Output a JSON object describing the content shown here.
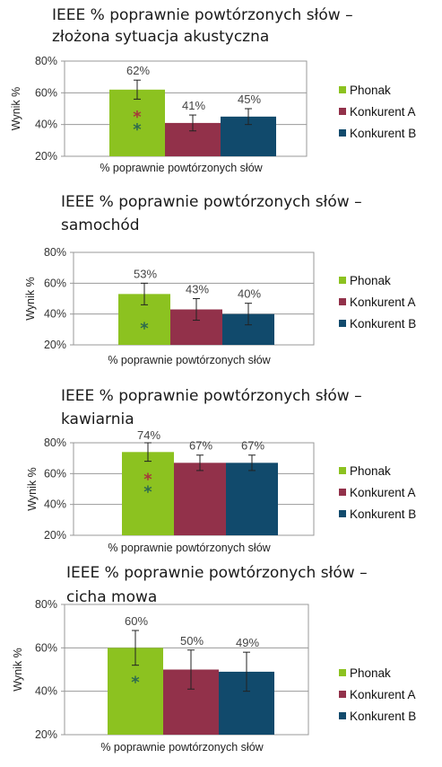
{
  "colors": {
    "Phonak": "#8cc220",
    "Konkurent A": "#92314a",
    "Konkurent B": "#114a6c",
    "star_red": "#a63a3a",
    "star_green": "#2e6b4e",
    "grid": "#999999",
    "error_bar": "#222222"
  },
  "chart_data": [
    {
      "type": "bar",
      "title_lines": [
        "IEEE % poprawnie powtórzonych słów –",
        "złożona sytuacja akustyczna"
      ],
      "xlabel": "% poprawnie powtórzonych słów",
      "ylabel": "Wynik %",
      "ylim": [
        20,
        80
      ],
      "yticks": [
        "20%",
        "40%",
        "60%",
        "80%"
      ],
      "grid": true,
      "legend_position": "right",
      "series": [
        {
          "name": "Phonak",
          "value": 62,
          "label": "62%",
          "error": 6,
          "stars": [
            "red",
            "green"
          ]
        },
        {
          "name": "Konkurent A",
          "value": 41,
          "label": "41%",
          "error": 5,
          "stars": []
        },
        {
          "name": "Konkurent B",
          "value": 45,
          "label": "45%",
          "error": 5,
          "stars": []
        }
      ]
    },
    {
      "type": "bar",
      "title_lines": [
        "IEEE % poprawnie powtórzonych słów –",
        "samochód"
      ],
      "xlabel": "% poprawnie powtórzonych słów",
      "ylabel": "Wynik %",
      "ylim": [
        20,
        80
      ],
      "yticks": [
        "20%",
        "40%",
        "60%",
        "80%"
      ],
      "grid": true,
      "legend_position": "right",
      "series": [
        {
          "name": "Phonak",
          "value": 53,
          "label": "53%",
          "error": 7,
          "stars": [
            "green"
          ]
        },
        {
          "name": "Konkurent A",
          "value": 43,
          "label": "43%",
          "error": 7,
          "stars": []
        },
        {
          "name": "Konkurent B",
          "value": 40,
          "label": "40%",
          "error": 7,
          "stars": []
        }
      ]
    },
    {
      "type": "bar",
      "title_lines": [
        "IEEE % poprawnie powtórzonych słów –",
        "kawiarnia"
      ],
      "xlabel": "% poprawnie powtórzonych słów",
      "ylabel": "Wynik %",
      "ylim": [
        20,
        80
      ],
      "yticks": [
        "20%",
        "40%",
        "60%",
        "80%"
      ],
      "grid": true,
      "legend_position": "right",
      "series": [
        {
          "name": "Phonak",
          "value": 74,
          "label": "74%",
          "error": 6,
          "stars": [
            "red",
            "green"
          ]
        },
        {
          "name": "Konkurent A",
          "value": 67,
          "label": "67%",
          "error": 5,
          "stars": []
        },
        {
          "name": "Konkurent B",
          "value": 67,
          "label": "67%",
          "error": 5,
          "stars": []
        }
      ]
    },
    {
      "type": "bar",
      "title_lines": [
        "IEEE % poprawnie powtórzonych słów –",
        "cicha mowa"
      ],
      "xlabel": "% poprawnie powtórzonych słów",
      "ylabel": "Wynik %",
      "ylim": [
        20,
        80
      ],
      "yticks": [
        "20%",
        "40%",
        "60%",
        "80%"
      ],
      "grid": true,
      "legend_position": "right",
      "series": [
        {
          "name": "Phonak",
          "value": 60,
          "label": "60%",
          "error": 8,
          "stars": [
            "green"
          ]
        },
        {
          "name": "Konkurent A",
          "value": 50,
          "label": "50%",
          "error": 9,
          "stars": []
        },
        {
          "name": "Konkurent B",
          "value": 49,
          "label": "49%",
          "error": 9,
          "stars": []
        }
      ]
    }
  ]
}
